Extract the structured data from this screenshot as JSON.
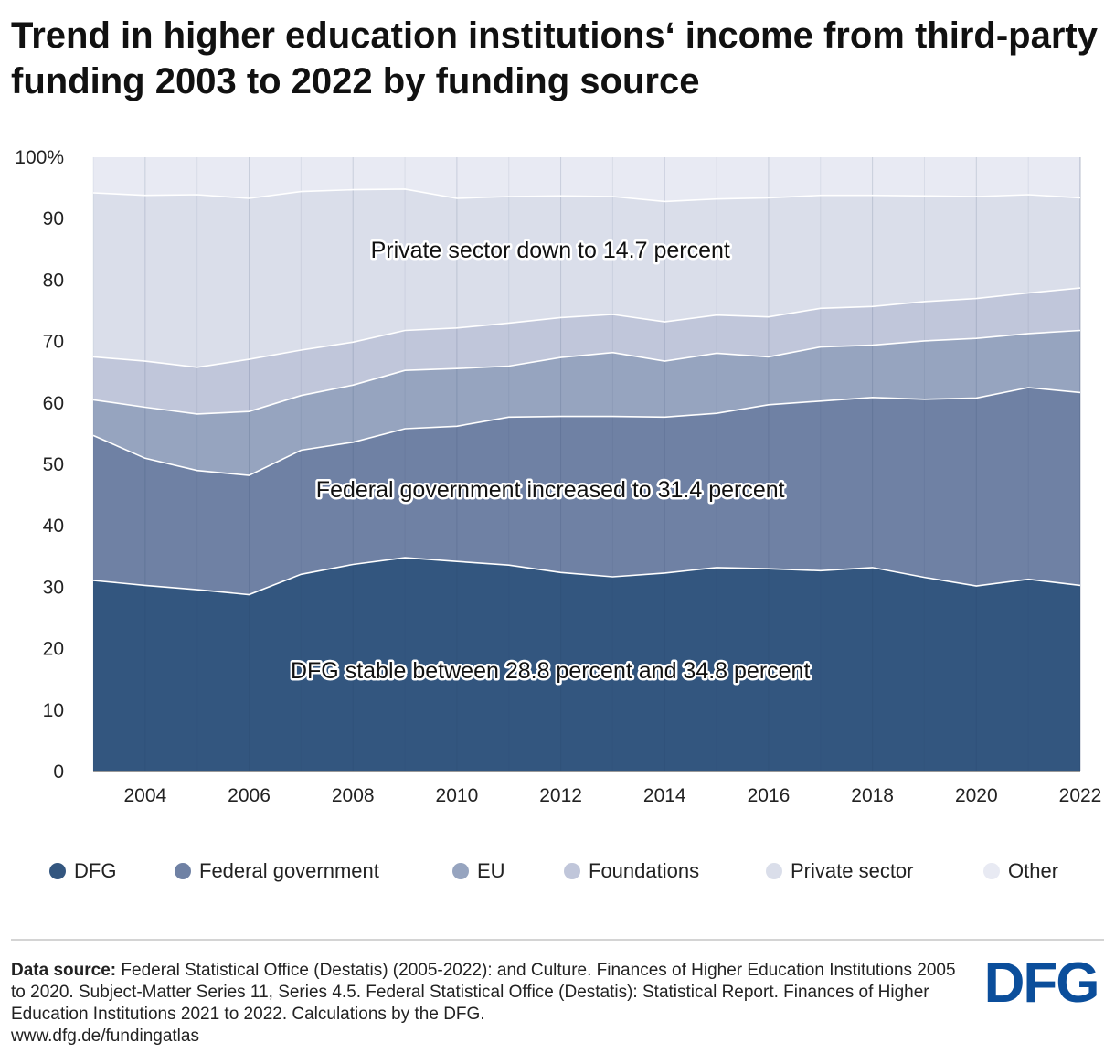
{
  "title": "Trend in higher education institutions‘ income from third-party funding 2003 to 2022 by funding source",
  "chart_data": {
    "type": "area",
    "stacked": true,
    "x": [
      2003,
      2004,
      2005,
      2006,
      2007,
      2008,
      2009,
      2010,
      2011,
      2012,
      2013,
      2014,
      2015,
      2016,
      2017,
      2018,
      2019,
      2020,
      2021,
      2022
    ],
    "x_tick_labels": [
      "2004",
      "2006",
      "2008",
      "2010",
      "2012",
      "2014",
      "2016",
      "2018",
      "2020",
      "2022"
    ],
    "x_ticks": [
      2004,
      2006,
      2008,
      2010,
      2012,
      2014,
      2016,
      2018,
      2020,
      2022
    ],
    "ylim": [
      0,
      100
    ],
    "y_ticks": [
      0,
      10,
      20,
      30,
      40,
      50,
      60,
      70,
      80,
      90,
      100
    ],
    "y_tick_labels": [
      "0",
      "10",
      "20",
      "30",
      "40",
      "50",
      "60",
      "70",
      "80",
      "90",
      "100%"
    ],
    "grid": "vertical",
    "legend_position": "bottom",
    "series": [
      {
        "name": "DFG",
        "color": "#33567f",
        "values": [
          31.1,
          30.3,
          29.6,
          28.8,
          32.1,
          33.7,
          34.8,
          34.2,
          33.6,
          32.4,
          31.7,
          32.3,
          33.2,
          33.0,
          32.7,
          33.2,
          31.6,
          30.2,
          31.3,
          30.3
        ]
      },
      {
        "name": "Federal government",
        "color": "#6f81a4",
        "values": [
          23.6,
          20.7,
          19.4,
          19.4,
          20.2,
          19.9,
          21.0,
          22.0,
          24.1,
          25.4,
          26.1,
          25.4,
          25.1,
          26.7,
          27.6,
          27.7,
          29.0,
          30.6,
          31.2,
          31.4
        ]
      },
      {
        "name": "EU",
        "color": "#96a4bf",
        "values": [
          5.8,
          8.3,
          9.2,
          10.4,
          8.9,
          9.3,
          9.5,
          9.4,
          8.3,
          9.6,
          10.4,
          9.1,
          9.8,
          7.8,
          8.8,
          8.5,
          9.5,
          9.7,
          8.8,
          10.1
        ]
      },
      {
        "name": "Foundations",
        "color": "#c0c6da",
        "values": [
          7.0,
          7.5,
          7.6,
          8.5,
          7.4,
          7.0,
          6.5,
          6.6,
          7.0,
          6.5,
          6.2,
          6.4,
          6.2,
          6.5,
          6.3,
          6.3,
          6.4,
          6.5,
          6.6,
          6.9
        ]
      },
      {
        "name": "Private sector",
        "color": "#dadeea",
        "values": [
          26.7,
          27.0,
          28.1,
          26.2,
          25.8,
          24.8,
          23.0,
          21.1,
          20.6,
          19.8,
          19.2,
          19.6,
          18.9,
          19.4,
          18.4,
          18.1,
          17.2,
          16.6,
          16.0,
          14.7
        ]
      },
      {
        "name": "Other",
        "color": "#e8eaf3",
        "values": [
          5.8,
          6.2,
          6.1,
          6.7,
          5.6,
          5.3,
          5.2,
          6.7,
          6.4,
          6.3,
          6.4,
          7.2,
          6.8,
          6.6,
          6.2,
          6.2,
          6.3,
          6.4,
          6.1,
          6.6
        ]
      }
    ],
    "annotations": [
      {
        "text": "Private sector down to 14.7 percent",
        "x": 2011.8,
        "y": 85
      },
      {
        "text": "Federal government increased to 31.4 percent",
        "x": 2011.8,
        "y": 46
      },
      {
        "text": "DFG stable between 28.8 percent and 34.8 percent",
        "x": 2011.8,
        "y": 16.5
      }
    ]
  },
  "footer": {
    "source_label": "Data source:",
    "source_text": "Federal Statistical Office (Destatis) (2005-2022): and Culture. Finances of Higher Education Institutions 2005 to 2020. Subject-Matter Series 11, Series 4.5. Federal Statistical Office (Destatis): Statistical Report. Finances of Higher Education Institutions 2021 to 2022. Calculations by the DFG.",
    "url": "www.dfg.de/fundingatlas",
    "logo_text": "DFG",
    "logo_color": "#0b4e9b"
  }
}
